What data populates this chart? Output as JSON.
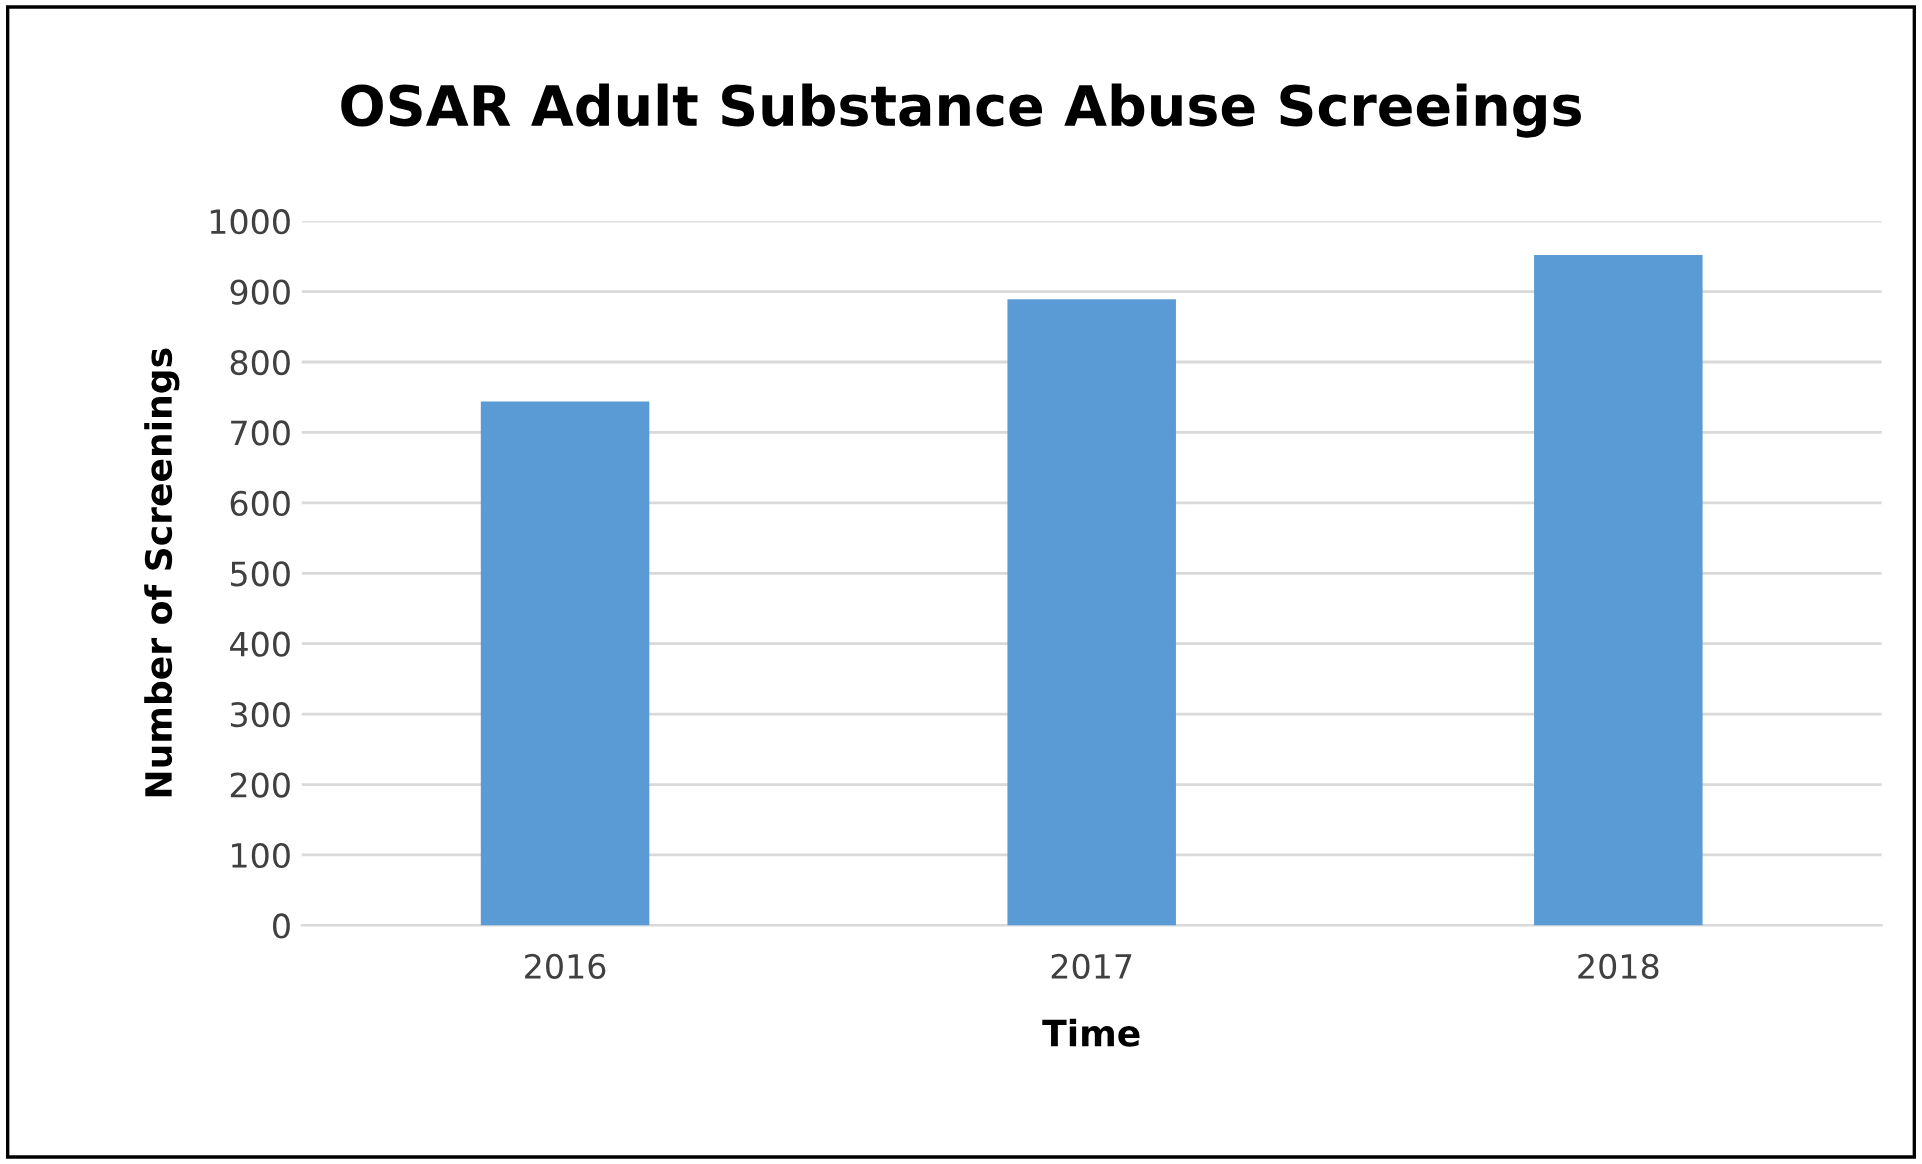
{
  "chart_data": {
    "type": "bar",
    "title": "OSAR Adult Substance Abuse Screeings",
    "xlabel": "Time",
    "ylabel": "Number of Screenings",
    "categories": [
      "2016",
      "2017",
      "2018"
    ],
    "values": [
      744,
      889,
      952
    ],
    "color": "#5b9bd5",
    "ylim": [
      0,
      1000
    ],
    "yticks": [
      0,
      100,
      200,
      300,
      400,
      500,
      600,
      700,
      800,
      900,
      1000
    ],
    "grid": "y",
    "legend": false
  }
}
